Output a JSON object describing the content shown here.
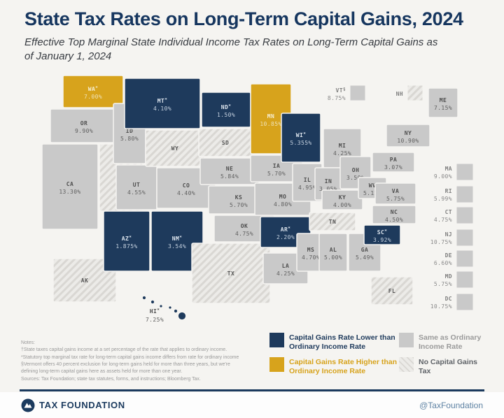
{
  "header": {
    "title": "State Tax Rates on Long-Term Capital Gains, 2024",
    "subtitle": "Effective Top Marginal State Individual Income Tax Rates on Long-Term Capital Gains as of January 1, 2024"
  },
  "colors": {
    "lower": "#1e3a5c",
    "higher": "#d7a31c",
    "same": "#c9c9c9",
    "hatch_bg": "#ecebe8",
    "hatch_stripe": "#d9d7d3",
    "title": "#16365f",
    "legend_same_text": "#9a9a9a",
    "legend_none_text": "#5f6368",
    "background": "#f5f4f1"
  },
  "map": {
    "states": [
      {
        "abbr": "AK",
        "sup": "",
        "rate": "",
        "cat": "none"
      },
      {
        "abbr": "WA",
        "sup": "*",
        "rate": "7.00%",
        "cat": "higher"
      },
      {
        "abbr": "OR",
        "sup": "",
        "rate": "9.90%",
        "cat": "same"
      },
      {
        "abbr": "CA",
        "sup": "",
        "rate": "13.30%",
        "cat": "same"
      },
      {
        "abbr": "NV",
        "sup": "",
        "rate": "",
        "cat": "none"
      },
      {
        "abbr": "ID",
        "sup": "",
        "rate": "5.80%",
        "cat": "same"
      },
      {
        "abbr": "UT",
        "sup": "",
        "rate": "4.55%",
        "cat": "same"
      },
      {
        "abbr": "MT",
        "sup": "*",
        "rate": "4.10%",
        "cat": "lower"
      },
      {
        "abbr": "WY",
        "sup": "",
        "rate": "",
        "cat": "none"
      },
      {
        "abbr": "CO",
        "sup": "",
        "rate": "4.40%",
        "cat": "same"
      },
      {
        "abbr": "AZ",
        "sup": "*",
        "rate": "1.875%",
        "cat": "lower"
      },
      {
        "abbr": "NM",
        "sup": "*",
        "rate": "3.54%",
        "cat": "lower"
      },
      {
        "abbr": "ND",
        "sup": "*",
        "rate": "1.50%",
        "cat": "lower"
      },
      {
        "abbr": "SD",
        "sup": "",
        "rate": "",
        "cat": "none"
      },
      {
        "abbr": "NE",
        "sup": "",
        "rate": "5.84%",
        "cat": "same"
      },
      {
        "abbr": "KS",
        "sup": "",
        "rate": "5.70%",
        "cat": "same"
      },
      {
        "abbr": "OK",
        "sup": "",
        "rate": "4.75%",
        "cat": "same"
      },
      {
        "abbr": "TX",
        "sup": "",
        "rate": "",
        "cat": "none"
      },
      {
        "abbr": "MN",
        "sup": "",
        "rate": "10.85%",
        "cat": "higher"
      },
      {
        "abbr": "IA",
        "sup": "",
        "rate": "5.70%",
        "cat": "same"
      },
      {
        "abbr": "MO",
        "sup": "",
        "rate": "4.80%",
        "cat": "same"
      },
      {
        "abbr": "AR",
        "sup": "*",
        "rate": "2.20%",
        "cat": "lower"
      },
      {
        "abbr": "LA",
        "sup": "",
        "rate": "4.25%",
        "cat": "same"
      },
      {
        "abbr": "WI",
        "sup": "*",
        "rate": "5.355%",
        "cat": "lower"
      },
      {
        "abbr": "IL",
        "sup": "",
        "rate": "4.95%",
        "cat": "same"
      },
      {
        "abbr": "MS",
        "sup": "",
        "rate": "4.70%",
        "cat": "same"
      },
      {
        "abbr": "MI",
        "sup": "",
        "rate": "4.25%",
        "cat": "same"
      },
      {
        "abbr": "IN",
        "sup": "",
        "rate": "3.05%",
        "cat": "same"
      },
      {
        "abbr": "OH",
        "sup": "",
        "rate": "3.50%",
        "cat": "same"
      },
      {
        "abbr": "KY",
        "sup": "",
        "rate": "4.00%",
        "cat": "same"
      },
      {
        "abbr": "TN",
        "sup": "",
        "rate": "",
        "cat": "none"
      },
      {
        "abbr": "AL",
        "sup": "",
        "rate": "5.00%",
        "cat": "same"
      },
      {
        "abbr": "GA",
        "sup": "",
        "rate": "5.49%",
        "cat": "same"
      },
      {
        "abbr": "WV",
        "sup": "",
        "rate": "5.12%",
        "cat": "same"
      },
      {
        "abbr": "PA",
        "sup": "",
        "rate": "3.07%",
        "cat": "same"
      },
      {
        "abbr": "NY",
        "sup": "",
        "rate": "10.90%",
        "cat": "same"
      },
      {
        "abbr": "ME",
        "sup": "",
        "rate": "7.15%",
        "cat": "same"
      },
      {
        "abbr": "VA",
        "sup": "",
        "rate": "5.75%",
        "cat": "same"
      },
      {
        "abbr": "NC",
        "sup": "",
        "rate": "4.50%",
        "cat": "same"
      },
      {
        "abbr": "SC",
        "sup": "*",
        "rate": "3.92%",
        "cat": "lower"
      },
      {
        "abbr": "FL",
        "sup": "",
        "rate": "",
        "cat": "none"
      },
      {
        "abbr": "HI",
        "sup": "*",
        "rate": "7.25%",
        "cat": "lower"
      },
      {
        "abbr": "VT",
        "sup": "§",
        "rate": "8.75%",
        "cat": "same"
      },
      {
        "abbr": "NH",
        "sup": "",
        "rate": "",
        "cat": "none"
      },
      {
        "abbr": "MA",
        "sup": "",
        "rate": "9.00%",
        "cat": "same"
      },
      {
        "abbr": "RI",
        "sup": "",
        "rate": "5.99%",
        "cat": "same"
      },
      {
        "abbr": "CT",
        "sup": "",
        "rate": "4.75%",
        "cat": "same"
      },
      {
        "abbr": "NJ",
        "sup": "",
        "rate": "10.75%",
        "cat": "same"
      },
      {
        "abbr": "DE",
        "sup": "",
        "rate": "6.60%",
        "cat": "same"
      },
      {
        "abbr": "MD",
        "sup": "",
        "rate": "5.75%",
        "cat": "same"
      },
      {
        "abbr": "DC",
        "sup": "",
        "rate": "10.75%",
        "cat": "same"
      }
    ]
  },
  "legend": {
    "lower": "Capital Gains Rate Lower than Ordinary Income Rate",
    "higher": "Capital Gains Rate Higher than Ordinary Income Rate",
    "same": "Same as Ordinary Income Rate",
    "none": "No Capital Gains Tax"
  },
  "notes": {
    "heading": "Notes:",
    "lines": [
      "†State taxes capital gains income at a set percentage of the rate that applies to ordinary income.",
      "*Statutory top marginal tax rate for long-term capital gains income differs from rate for ordinary income",
      "§Vermont offers 40 percent exclusion for long-term gains held for more than three years, but we're",
      "defining long-term capital gains here as assets held for more than one year.",
      "Sources: Tax Foundation; state tax statutes, forms, and instructions; Bloomberg Tax."
    ]
  },
  "footer": {
    "brand": "TAX FOUNDATION",
    "handle": "@TaxFoundation"
  }
}
